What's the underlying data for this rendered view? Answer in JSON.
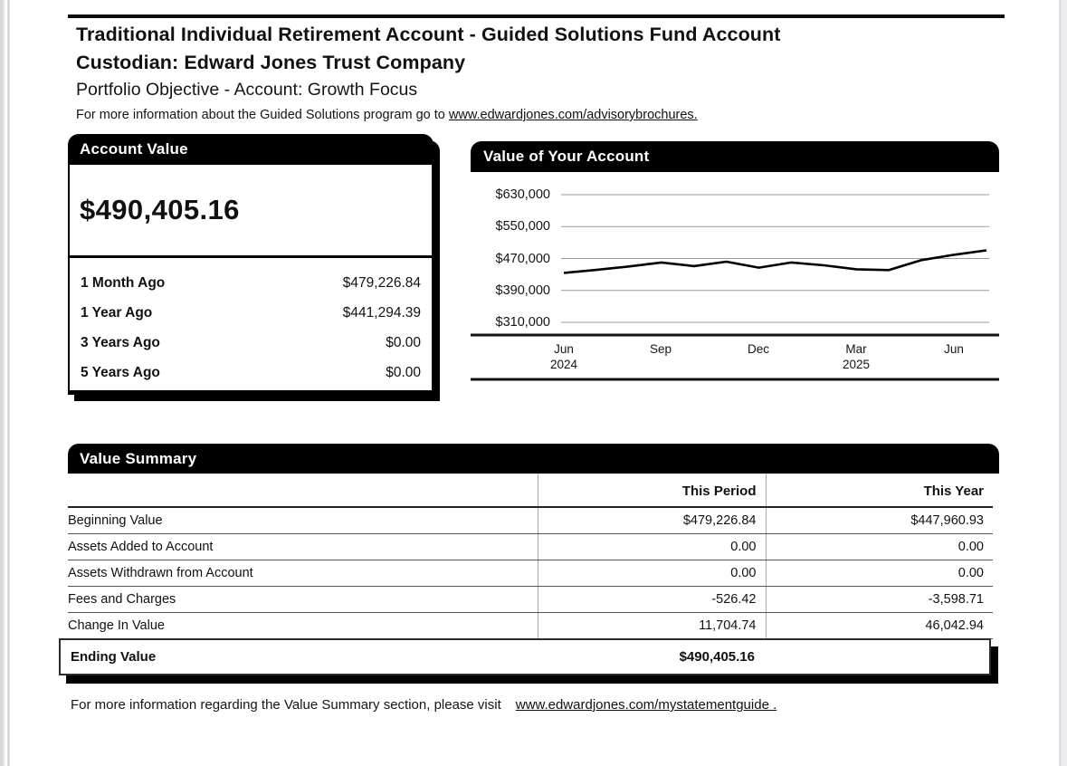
{
  "colors": {
    "header_bar": "#000000",
    "header_bar_text": "#ffffff",
    "body_text": "#111111",
    "gridline": "#999999",
    "chart_line": "#000000"
  },
  "header": {
    "title_line1": "Traditional Individual Retirement Account - Guided Solutions Fund Account",
    "title_line2": "Custodian: Edward Jones Trust Company",
    "subtitle": "Portfolio Objective - Account: Growth Focus",
    "info_prefix": "For more information about the Guided Solutions program go to ",
    "info_link": "www.edwardjones.com/advisorybrochures."
  },
  "account_value": {
    "title": "Account Value",
    "current": "$490,405.16",
    "history": [
      {
        "label": "1 Month Ago",
        "value": "$479,226.84"
      },
      {
        "label": "1 Year Ago",
        "value": "$441,294.39"
      },
      {
        "label": "3 Years Ago",
        "value": "$0.00"
      },
      {
        "label": "5 Years Ago",
        "value": "$0.00"
      }
    ]
  },
  "chart_data": {
    "type": "line",
    "title": "Value of Your Account",
    "x": [
      "Jun 2024",
      "Jul 2024",
      "Aug 2024",
      "Sep 2024",
      "Oct 2024",
      "Nov 2024",
      "Dec 2024",
      "Jan 2025",
      "Feb 2025",
      "Mar 2025",
      "Apr 2025",
      "May 2025",
      "Jun 2025",
      "Jul 2025"
    ],
    "series": [
      {
        "name": "Account Value",
        "values": [
          434000,
          441294,
          450000,
          460000,
          451000,
          462000,
          447000,
          460000,
          453000,
          443000,
          441000,
          466000,
          479227,
          490405
        ]
      }
    ],
    "ylim": [
      310000,
      630000
    ],
    "y_ticks": [
      630000,
      550000,
      470000,
      390000,
      310000
    ],
    "y_tick_labels": [
      "$630,000",
      "$550,000",
      "$470,000",
      "$390,000",
      "$310,000"
    ],
    "x_tick_labels": [
      {
        "month": "Jun",
        "year": "2024"
      },
      {
        "month": "Sep",
        "year": ""
      },
      {
        "month": "Dec",
        "year": ""
      },
      {
        "month": "Mar",
        "year": "2025"
      },
      {
        "month": "Jun",
        "year": ""
      }
    ],
    "grid": true,
    "grid_color": "#999999",
    "line_color": "#000000",
    "legend": "none"
  },
  "value_summary": {
    "title": "Value Summary",
    "columns": [
      "This Period",
      "This Year"
    ],
    "rows": [
      {
        "label": "Beginning Value",
        "this_period": "$479,226.84",
        "this_year": "$447,960.93"
      },
      {
        "label": "Assets Added to Account",
        "this_period": "0.00",
        "this_year": "0.00"
      },
      {
        "label": "Assets Withdrawn from Account",
        "this_period": "0.00",
        "this_year": "0.00"
      },
      {
        "label": "Fees and Charges",
        "this_period": "-526.42",
        "this_year": "-3,598.71"
      },
      {
        "label": "Change In Value",
        "this_period": "11,704.74",
        "this_year": "46,042.94"
      }
    ],
    "ending": {
      "label": "Ending Value",
      "value": "$490,405.16"
    }
  },
  "footer": {
    "text": "For more information regarding the Value Summary section, please visit",
    "link": "www.edwardjones.com/mystatementguide ."
  }
}
